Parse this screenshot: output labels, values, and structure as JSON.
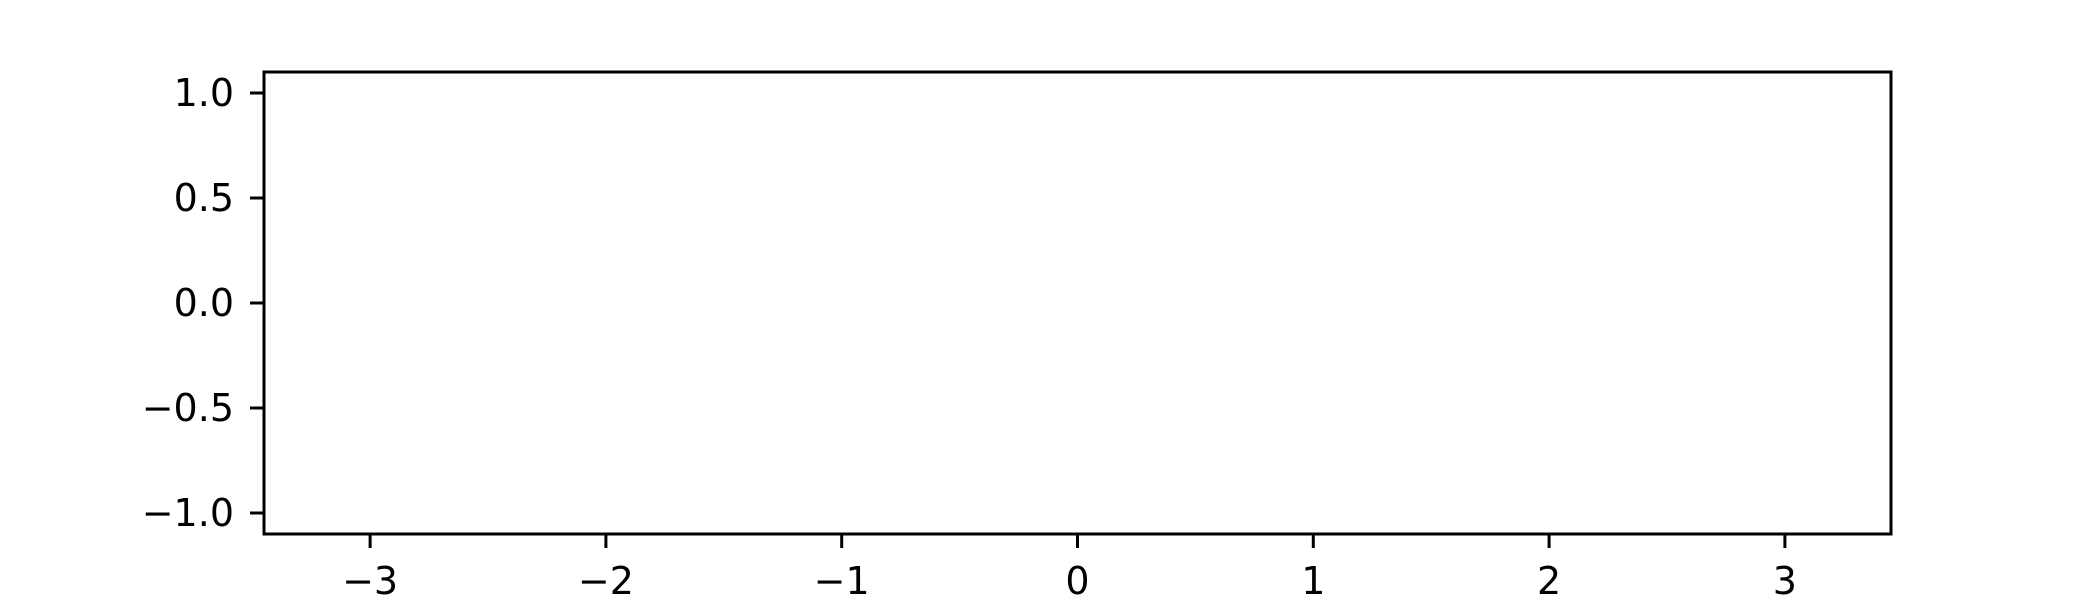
{
  "chart_data": {
    "type": "line",
    "title": "",
    "xlabel": "",
    "ylabel": "",
    "xlim": [
      -3.45,
      3.45
    ],
    "ylim": [
      -1.1,
      1.1
    ],
    "x_ticks": [
      -3,
      -2,
      -1,
      0,
      1,
      2,
      3
    ],
    "x_tick_labels": [
      "−3",
      "−2",
      "−1",
      "0",
      "1",
      "2",
      "3"
    ],
    "y_ticks": [
      1.0,
      0.5,
      0.0,
      -0.5,
      -1.0
    ],
    "y_tick_labels": [
      "1.0",
      "0.5",
      "0.0",
      "−0.5",
      "−1.0"
    ],
    "series": [],
    "grid": false,
    "legend": "none",
    "colors": {
      "axes": "#000000",
      "background": "#ffffff"
    }
  }
}
